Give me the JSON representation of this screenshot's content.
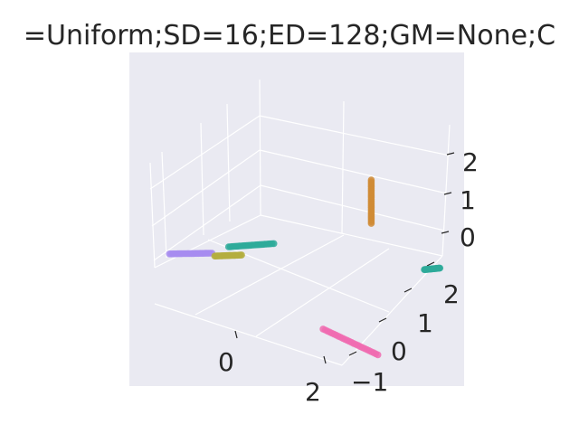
{
  "chart_data": {
    "type": "scatter",
    "projection": "3d",
    "title": "=Uniform;SD=16;ED=128;GM=None;C",
    "background_color": "#eaeaf2",
    "grid": true,
    "x_ticks": [
      "0",
      "2"
    ],
    "y_ticks": [
      "−1",
      "0",
      "1",
      "2"
    ],
    "z_ticks": [
      "0",
      "1",
      "2"
    ],
    "series": [
      {
        "color": "#d08b35",
        "points": [
          [
            2.3,
            1.0,
            2.2
          ],
          [
            2.3,
            1.0,
            1.0
          ]
        ]
      },
      {
        "color": "#2eaa9a",
        "points": [
          [
            3.4,
            1.2,
            0.05
          ],
          [
            3.7,
            1.3,
            0.15
          ]
        ]
      },
      {
        "color": "#f06bb0",
        "points": [
          [
            2.7,
            -1.5,
            0.0
          ],
          [
            3.6,
            -0.9,
            -0.75
          ]
        ]
      },
      {
        "color": "#a78cf0",
        "points": [
          [
            -1.2,
            -0.9,
            0.0
          ],
          [
            -0.4,
            -0.6,
            0.15
          ]
        ]
      },
      {
        "color": "#b4ae40",
        "points": [
          [
            -0.4,
            -0.5,
            0.0
          ],
          [
            0.1,
            -0.3,
            0.1
          ]
        ]
      },
      {
        "color": "#2eaa9a",
        "points": [
          [
            -0.2,
            -0.3,
            0.2
          ],
          [
            0.6,
            0.1,
            0.35
          ]
        ]
      }
    ]
  }
}
